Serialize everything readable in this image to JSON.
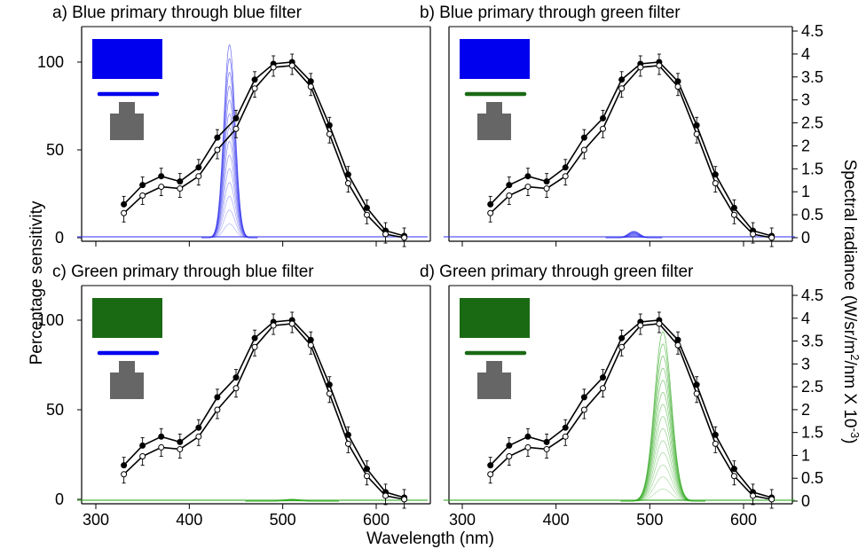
{
  "figure": {
    "ylabel_left": "Percentage sensitivity",
    "ylabel_right": "Spectral radiance (W/sr/m",
    "ylabel_right_sup1": "2",
    "ylabel_right_mid": "/nm X 10",
    "ylabel_right_sup2": "-3",
    "ylabel_right_end": ")",
    "xlabel": "Wavelength (nm)",
    "x_ticks": [
      "300",
      "400",
      "500",
      "600"
    ],
    "y_ticks_left": [
      "0",
      "50",
      "100"
    ],
    "y_ticks_right": [
      "0",
      "0.5",
      "1",
      "1.5",
      "2",
      "2.5",
      "3",
      "3.5",
      "4",
      "4.5"
    ]
  },
  "colors": {
    "blue_patch": "#0000ee",
    "green_patch": "#1a6a14",
    "blue_spectrum": "#3a3aee",
    "green_spectrum": "#2fa81e",
    "photometer": "#666666"
  },
  "chart_data": [
    {
      "type": "line",
      "panel": "a",
      "title": "a) Blue primary through blue filter",
      "primary": "blue",
      "filter": "blue",
      "xlim": [
        280,
        660
      ],
      "ylim_left": [
        0,
        118
      ],
      "ylim_right": [
        0,
        4.5
      ],
      "grid": false,
      "series": [
        {
          "marker": "filled",
          "x": [
            330,
            350,
            370,
            390,
            410,
            430,
            450,
            470,
            490,
            510,
            530,
            550,
            570,
            590,
            610,
            630
          ],
          "y": [
            19,
            30,
            35,
            32,
            40,
            57,
            68,
            90,
            99,
            100,
            89,
            64,
            36,
            17,
            4,
            1
          ]
        },
        {
          "marker": "open",
          "x": [
            330,
            350,
            370,
            390,
            410,
            430,
            450,
            470,
            490,
            510,
            530,
            550,
            570,
            590,
            610,
            630
          ],
          "y": [
            14,
            24,
            29,
            28,
            35,
            50,
            62,
            85,
            97,
            98,
            86,
            59,
            31,
            13,
            2,
            0
          ]
        }
      ],
      "spectrum": {
        "peak_nm": 443,
        "peak_radiance": 4.2,
        "width_nm": 6
      }
    },
    {
      "type": "line",
      "panel": "b",
      "title": "b) Blue primary through green filter",
      "primary": "blue",
      "filter": "green",
      "xlim": [
        280,
        660
      ],
      "ylim_left": [
        0,
        118
      ],
      "ylim_right": [
        0,
        4.5
      ],
      "grid": false,
      "series": [
        {
          "marker": "filled",
          "x": [
            330,
            350,
            370,
            390,
            410,
            430,
            450,
            470,
            490,
            510,
            530,
            550,
            570,
            590,
            610,
            630
          ],
          "y": [
            19,
            30,
            35,
            32,
            40,
            57,
            68,
            90,
            99,
            100,
            89,
            64,
            36,
            17,
            4,
            1
          ]
        },
        {
          "marker": "open",
          "x": [
            330,
            350,
            370,
            390,
            410,
            430,
            450,
            470,
            490,
            510,
            530,
            550,
            570,
            590,
            610,
            630
          ],
          "y": [
            14,
            24,
            29,
            28,
            35,
            50,
            62,
            85,
            97,
            98,
            86,
            59,
            31,
            13,
            2,
            0
          ]
        }
      ],
      "spectrum": {
        "peak_nm": 483,
        "peak_radiance": 0.14,
        "width_nm": 6
      }
    },
    {
      "type": "line",
      "panel": "c",
      "title": "c) Green primary through blue filter",
      "primary": "green",
      "filter": "blue",
      "xlim": [
        280,
        660
      ],
      "ylim_left": [
        0,
        118
      ],
      "ylim_right": [
        0,
        4.5
      ],
      "grid": false,
      "series": [
        {
          "marker": "filled",
          "x": [
            330,
            350,
            370,
            390,
            410,
            430,
            450,
            470,
            490,
            510,
            530,
            550,
            570,
            590,
            610,
            630
          ],
          "y": [
            19,
            30,
            35,
            32,
            40,
            57,
            68,
            90,
            99,
            100,
            89,
            64,
            36,
            17,
            4,
            1
          ]
        },
        {
          "marker": "open",
          "x": [
            330,
            350,
            370,
            390,
            410,
            430,
            450,
            470,
            490,
            510,
            530,
            550,
            570,
            590,
            610,
            630
          ],
          "y": [
            14,
            24,
            29,
            28,
            35,
            50,
            62,
            85,
            97,
            98,
            86,
            59,
            31,
            13,
            2,
            0
          ]
        }
      ],
      "spectrum": {
        "peak_nm": 510,
        "peak_radiance": 0.04,
        "width_nm": 10
      }
    },
    {
      "type": "line",
      "panel": "d",
      "title": "d) Green primary through green filter",
      "primary": "green",
      "filter": "green",
      "xlim": [
        280,
        660
      ],
      "ylim_left": [
        0,
        118
      ],
      "ylim_right": [
        0,
        4.5
      ],
      "grid": false,
      "series": [
        {
          "marker": "filled",
          "x": [
            330,
            350,
            370,
            390,
            410,
            430,
            450,
            470,
            490,
            510,
            530,
            550,
            570,
            590,
            610,
            630
          ],
          "y": [
            19,
            30,
            35,
            32,
            40,
            57,
            68,
            90,
            99,
            100,
            89,
            64,
            36,
            17,
            4,
            1
          ]
        },
        {
          "marker": "open",
          "x": [
            330,
            350,
            370,
            390,
            410,
            430,
            450,
            470,
            490,
            510,
            530,
            550,
            570,
            590,
            610,
            630
          ],
          "y": [
            14,
            24,
            29,
            28,
            35,
            50,
            62,
            85,
            97,
            98,
            86,
            59,
            31,
            13,
            2,
            0
          ]
        }
      ],
      "spectrum": {
        "peak_nm": 514,
        "peak_radiance": 3.7,
        "width_nm": 9
      }
    }
  ]
}
